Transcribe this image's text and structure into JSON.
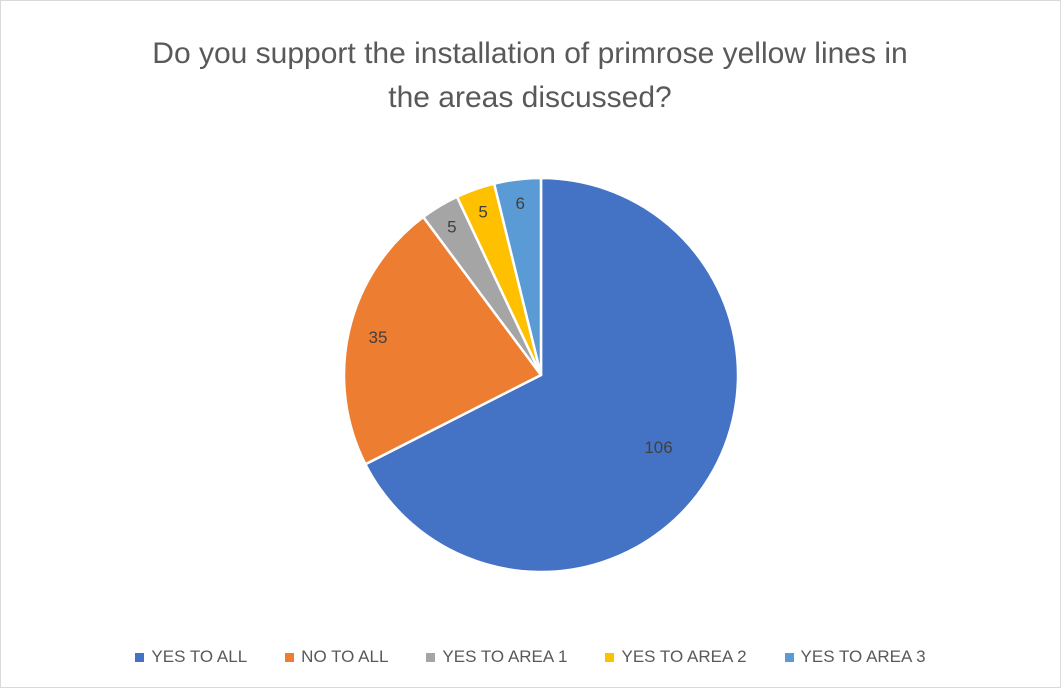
{
  "chart_data": {
    "type": "pie",
    "title": "Do you support the installation of primrose yellow lines in\nthe areas discussed?",
    "categories": [
      "YES TO ALL",
      "NO TO ALL",
      "YES TO AREA 1",
      "YES TO AREA 2",
      "YES TO AREA 3"
    ],
    "values": [
      106,
      35,
      5,
      5,
      6
    ],
    "data_labels": [
      "106",
      "35",
      "5",
      "5",
      "6"
    ],
    "colors": [
      "#4472C4",
      "#ED7D31",
      "#A5A5A5",
      "#FFC000",
      "#5B9BD5"
    ],
    "start": "12 o'clock, clockwise",
    "legend_position": "bottom"
  }
}
